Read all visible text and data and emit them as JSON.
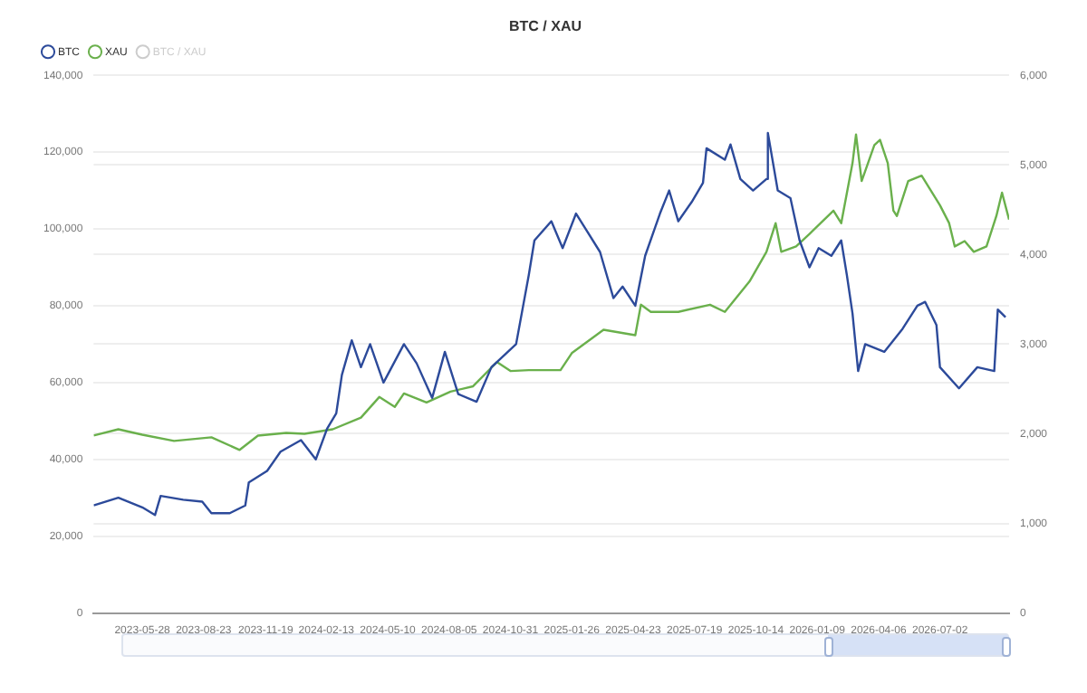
{
  "chart_data": {
    "type": "line",
    "title": "BTC / XAU",
    "xlim": [
      "2023-03-20",
      "2026-10-08"
    ],
    "xticks": [
      "2023-05-28",
      "2023-08-23",
      "2023-11-19",
      "2024-02-13",
      "2024-05-10",
      "2024-08-05",
      "2024-10-31",
      "2025-01-26",
      "2025-04-23",
      "2025-07-19",
      "2025-10-14",
      "2026-01-09",
      "2026-04-06",
      "2026-07-02"
    ],
    "ylim": [
      0,
      140000
    ],
    "yticks": [
      0,
      {
        "value": 20000,
        "label": "20,000"
      },
      {
        "value": 40000,
        "label": "40,000"
      },
      {
        "value": 60000,
        "label": "60,000"
      },
      {
        "value": 80000,
        "label": "80,000"
      },
      {
        "value": 100000,
        "label": "100,000"
      },
      {
        "value": 120000,
        "label": "120,000"
      },
      {
        "value": 140000,
        "label": "140,000"
      }
    ],
    "y2lim": [
      0,
      6000
    ],
    "y2ticks": [
      0,
      {
        "value": 1000,
        "label": "1,000"
      },
      {
        "value": 2000,
        "label": "2,000"
      },
      {
        "value": 3000,
        "label": "3,000"
      },
      {
        "value": 4000,
        "label": "4,000"
      },
      {
        "value": 5000,
        "label": "5,000"
      },
      {
        "value": 6000,
        "label": "6,000"
      }
    ],
    "grid": "y",
    "legend": "top left",
    "series": [
      {
        "name": "BTC",
        "color": "#2c4a9a",
        "x": [
          "2023-03-20",
          "2023-04-24",
          "2023-05-28",
          "2023-06-15",
          "2023-06-23",
          "2023-07-25",
          "2023-08-21",
          "2023-09-03",
          "2023-09-29",
          "2023-10-21",
          "2023-10-26",
          "2023-11-21",
          "2023-12-10",
          "2024-01-08",
          "2024-01-29",
          "2024-02-14",
          "2024-02-27",
          "2024-03-06",
          "2024-03-20",
          "2024-04-02",
          "2024-04-15",
          "2024-05-04",
          "2024-06-02",
          "2024-06-20",
          "2024-07-12",
          "2024-07-30",
          "2024-08-18",
          "2024-09-13",
          "2024-10-04",
          "2024-11-08",
          "2024-11-26",
          "2024-12-04",
          "2024-12-28",
          "2025-01-13",
          "2025-02-01",
          "2025-03-07",
          "2025-03-26",
          "2025-04-08",
          "2025-04-26",
          "2025-05-10",
          "2025-05-31",
          "2025-06-13",
          "2025-06-26",
          "2025-07-15",
          "2025-07-31",
          "2025-08-05",
          "2025-08-31",
          "2025-09-08",
          "2025-09-22",
          "2025-10-10",
          "2025-10-29",
          "2025-10-31",
          "2025-11-14",
          "2025-12-02",
          "2025-12-15",
          "2025-12-29",
          "2026-01-11",
          "2026-01-29",
          "2026-02-12",
          "2026-02-20",
          "2026-02-28",
          "2026-03-08",
          "2026-03-18",
          "2026-04-14",
          "2026-05-10",
          "2026-05-31",
          "2026-06-11",
          "2026-06-27",
          "2026-07-02",
          "2026-07-29",
          "2026-08-24",
          "2026-09-17",
          "2026-09-22",
          "2026-10-03"
        ],
        "values": [
          28000,
          30000,
          27500,
          25500,
          30500,
          29500,
          29000,
          26000,
          26000,
          28000,
          34000,
          37000,
          42000,
          45000,
          40000,
          48000,
          52000,
          62000,
          71000,
          64000,
          70000,
          60000,
          70000,
          65000,
          56000,
          68000,
          57000,
          55000,
          64000,
          70000,
          88000,
          97000,
          102000,
          95000,
          104000,
          94000,
          82000,
          85000,
          80000,
          93000,
          104000,
          110000,
          102000,
          107000,
          112000,
          121000,
          118000,
          122000,
          113000,
          110000,
          113000,
          125000,
          110000,
          108000,
          97000,
          90000,
          95000,
          93000,
          97000,
          88000,
          78000,
          63000,
          70000,
          68000,
          74000,
          80000,
          81000,
          75000,
          64000,
          58500,
          64000,
          63000,
          79000,
          77000
        ]
      },
      {
        "name": "XAU",
        "color": "#6ab04c",
        "axis": "y2",
        "x": [
          "2023-03-20",
          "2023-04-24",
          "2023-05-28",
          "2023-07-12",
          "2023-09-03",
          "2023-10-13",
          "2023-11-08",
          "2023-12-18",
          "2024-01-13",
          "2024-02-22",
          "2024-04-02",
          "2024-04-28",
          "2024-05-20",
          "2024-06-02",
          "2024-07-04",
          "2024-08-07",
          "2024-09-08",
          "2024-10-12",
          "2024-10-31",
          "2024-11-26",
          "2025-01-10",
          "2025-01-26",
          "2025-03-12",
          "2025-04-26",
          "2025-05-04",
          "2025-05-18",
          "2025-06-26",
          "2025-08-10",
          "2025-08-31",
          "2025-10-05",
          "2025-10-29",
          "2025-11-11",
          "2025-11-19",
          "2025-12-10",
          "2025-12-29",
          "2026-02-01",
          "2026-02-12",
          "2026-02-28",
          "2026-03-05",
          "2026-03-13",
          "2026-03-31",
          "2026-04-08",
          "2026-04-19",
          "2026-04-27",
          "2026-05-02",
          "2026-05-18",
          "2026-06-06",
          "2026-07-02",
          "2026-07-15",
          "2026-07-23",
          "2026-08-06",
          "2026-08-19",
          "2026-09-06",
          "2026-09-20",
          "2026-09-28",
          "2026-10-08"
        ],
        "values": [
          1980,
          2050,
          1990,
          1920,
          1960,
          1820,
          1980,
          2010,
          2000,
          2050,
          2180,
          2410,
          2300,
          2450,
          2350,
          2470,
          2530,
          2800,
          2700,
          2710,
          2710,
          2900,
          3160,
          3100,
          3440,
          3360,
          3360,
          3440,
          3360,
          3700,
          4030,
          4350,
          4030,
          4090,
          4230,
          4490,
          4350,
          5020,
          5340,
          4820,
          5220,
          5280,
          5020,
          4490,
          4430,
          4820,
          4880,
          4550,
          4350,
          4090,
          4150,
          4030,
          4090,
          4430,
          4690,
          4390
        ]
      },
      {
        "name": "BTC / XAU",
        "color": "#cccccc",
        "axis": "y2"
      }
    ]
  }
}
